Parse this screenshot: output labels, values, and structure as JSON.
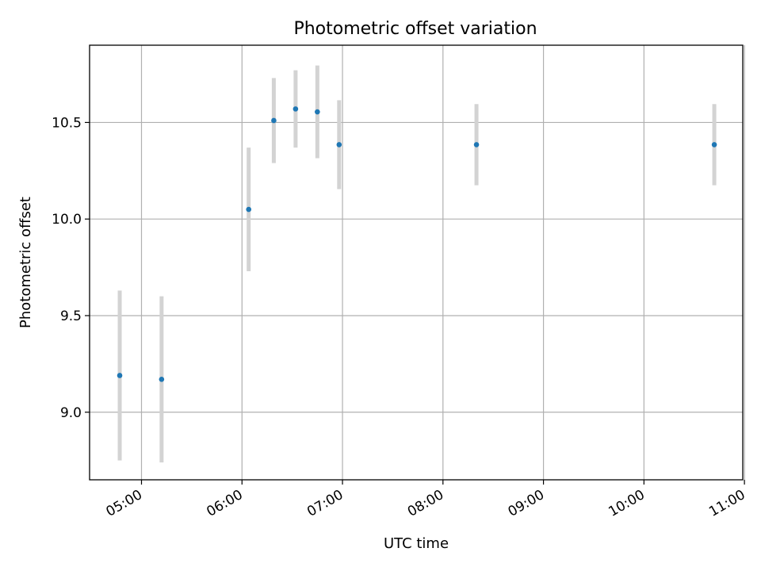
{
  "chart_data": {
    "type": "scatter",
    "title": "Photometric offset variation",
    "xlabel": "UTC time",
    "ylabel": "Photometric offset",
    "x_ticks": [
      "05:00",
      "06:00",
      "07:00",
      "08:00",
      "09:00",
      "10:00",
      "11:00"
    ],
    "y_ticks": [
      "9.0",
      "9.5",
      "10.0",
      "10.5"
    ],
    "xlim": [
      "04:29",
      "10:59"
    ],
    "ylim": [
      8.65,
      10.9
    ],
    "grid": true,
    "point_color": "#1f77b4",
    "errorbar_color": "#d3d3d3",
    "points": [
      {
        "time": "04:47",
        "y": 9.19,
        "err": 0.44
      },
      {
        "time": "05:12",
        "y": 9.17,
        "err": 0.43
      },
      {
        "time": "06:04",
        "y": 10.05,
        "err": 0.32
      },
      {
        "time": "06:19",
        "y": 10.51,
        "err": 0.22
      },
      {
        "time": "06:32",
        "y": 10.57,
        "err": 0.2
      },
      {
        "time": "06:45",
        "y": 10.555,
        "err": 0.24
      },
      {
        "time": "06:58",
        "y": 10.385,
        "err": 0.23
      },
      {
        "time": "08:20",
        "y": 10.385,
        "err": 0.21
      },
      {
        "time": "10:42",
        "y": 10.385,
        "err": 0.21
      }
    ]
  }
}
